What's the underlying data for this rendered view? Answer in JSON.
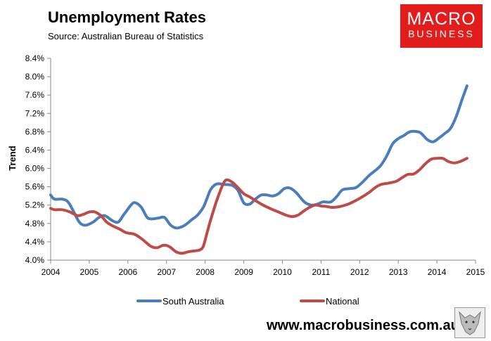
{
  "header": {
    "title": "Unemployment Rates",
    "source": "Source: Australian Bureau of Statistics"
  },
  "logo": {
    "line1": "MACRO",
    "line2": "BUSINESS"
  },
  "footer": {
    "url": "www.macrobusiness.com.au"
  },
  "colors": {
    "south_australia": "#4a7ebb",
    "national": "#be4b48",
    "logo_red": "#e31c1c"
  },
  "chart_data": {
    "type": "line",
    "title": "Unemployment Rates",
    "ylabel": "Trend",
    "xlabel": "",
    "ylim": [
      4.0,
      8.4
    ],
    "xlim": [
      2004,
      2015
    ],
    "y_ticks": [
      "4.0%",
      "4.4%",
      "4.8%",
      "5.2%",
      "5.6%",
      "6.0%",
      "6.4%",
      "6.8%",
      "7.2%",
      "7.6%",
      "8.0%",
      "8.4%"
    ],
    "x_ticks": [
      "2004",
      "2005",
      "2006",
      "2007",
      "2008",
      "2009",
      "2010",
      "2011",
      "2012",
      "2013",
      "2014",
      "2015"
    ],
    "legend_position": "bottom",
    "grid": false,
    "series": [
      {
        "name": "South Australia",
        "color": "#4a7ebb",
        "x": [
          2004.0,
          2004.1,
          2004.3,
          2004.45,
          2004.6,
          2004.75,
          2004.9,
          2005.1,
          2005.25,
          2005.4,
          2005.6,
          2005.75,
          2005.9,
          2006.1,
          2006.2,
          2006.35,
          2006.5,
          2006.65,
          2006.8,
          2006.95,
          2007.1,
          2007.25,
          2007.45,
          2007.65,
          2007.8,
          2007.95,
          2008.05,
          2008.15,
          2008.3,
          2008.5,
          2008.7,
          2008.85,
          2009.0,
          2009.15,
          2009.3,
          2009.45,
          2009.6,
          2009.75,
          2009.9,
          2010.05,
          2010.2,
          2010.35,
          2010.5,
          2010.6,
          2010.75,
          2010.9,
          2011.05,
          2011.25,
          2011.4,
          2011.55,
          2011.75,
          2011.9,
          2012.05,
          2012.25,
          2012.4,
          2012.55,
          2012.7,
          2012.85,
          2013.0,
          2013.15,
          2013.3,
          2013.5,
          2013.6,
          2013.75,
          2013.9,
          2014.05,
          2014.2,
          2014.35,
          2014.5,
          2014.65,
          2014.78
        ],
        "values": [
          5.42,
          5.33,
          5.33,
          5.27,
          5.05,
          4.82,
          4.76,
          4.83,
          4.93,
          4.97,
          4.86,
          4.83,
          5.0,
          5.22,
          5.25,
          5.15,
          4.93,
          4.9,
          4.92,
          4.93,
          4.77,
          4.7,
          4.75,
          4.88,
          4.98,
          5.15,
          5.35,
          5.55,
          5.66,
          5.65,
          5.63,
          5.52,
          5.25,
          5.22,
          5.33,
          5.42,
          5.42,
          5.4,
          5.45,
          5.56,
          5.57,
          5.48,
          5.33,
          5.25,
          5.2,
          5.22,
          5.27,
          5.27,
          5.38,
          5.53,
          5.56,
          5.58,
          5.68,
          5.85,
          5.95,
          6.07,
          6.27,
          6.53,
          6.65,
          6.72,
          6.8,
          6.8,
          6.76,
          6.63,
          6.58,
          6.66,
          6.76,
          6.87,
          7.13,
          7.5,
          7.8
        ]
      },
      {
        "name": "National",
        "color": "#be4b48",
        "x": [
          2004.0,
          2004.1,
          2004.3,
          2004.5,
          2004.7,
          2004.85,
          2005.0,
          2005.15,
          2005.3,
          2005.45,
          2005.6,
          2005.8,
          2005.95,
          2006.15,
          2006.3,
          2006.45,
          2006.6,
          2006.75,
          2006.9,
          2007.0,
          2007.1,
          2007.25,
          2007.4,
          2007.55,
          2007.7,
          2007.85,
          2007.95,
          2008.05,
          2008.15,
          2008.3,
          2008.45,
          2008.55,
          2008.7,
          2008.85,
          2009.0,
          2009.15,
          2009.3,
          2009.5,
          2009.7,
          2009.9,
          2010.1,
          2010.25,
          2010.4,
          2010.55,
          2010.7,
          2010.85,
          2011.0,
          2011.15,
          2011.3,
          2011.5,
          2011.7,
          2011.9,
          2012.05,
          2012.25,
          2012.4,
          2012.55,
          2012.75,
          2012.95,
          2013.1,
          2013.25,
          2013.4,
          2013.55,
          2013.7,
          2013.85,
          2014.0,
          2014.15,
          2014.3,
          2014.45,
          2014.6,
          2014.78
        ],
        "values": [
          5.13,
          5.1,
          5.1,
          5.05,
          4.97,
          5.0,
          5.05,
          5.05,
          4.97,
          4.83,
          4.75,
          4.67,
          4.6,
          4.57,
          4.5,
          4.4,
          4.3,
          4.27,
          4.32,
          4.32,
          4.28,
          4.18,
          4.15,
          4.18,
          4.2,
          4.22,
          4.3,
          4.6,
          4.9,
          5.3,
          5.63,
          5.75,
          5.7,
          5.58,
          5.45,
          5.38,
          5.3,
          5.2,
          5.12,
          5.05,
          4.98,
          4.95,
          4.98,
          5.07,
          5.15,
          5.2,
          5.18,
          5.17,
          5.15,
          5.17,
          5.22,
          5.3,
          5.37,
          5.48,
          5.58,
          5.65,
          5.68,
          5.72,
          5.8,
          5.87,
          5.88,
          5.97,
          6.1,
          6.2,
          6.22,
          6.22,
          6.15,
          6.12,
          6.15,
          6.22
        ]
      }
    ]
  }
}
